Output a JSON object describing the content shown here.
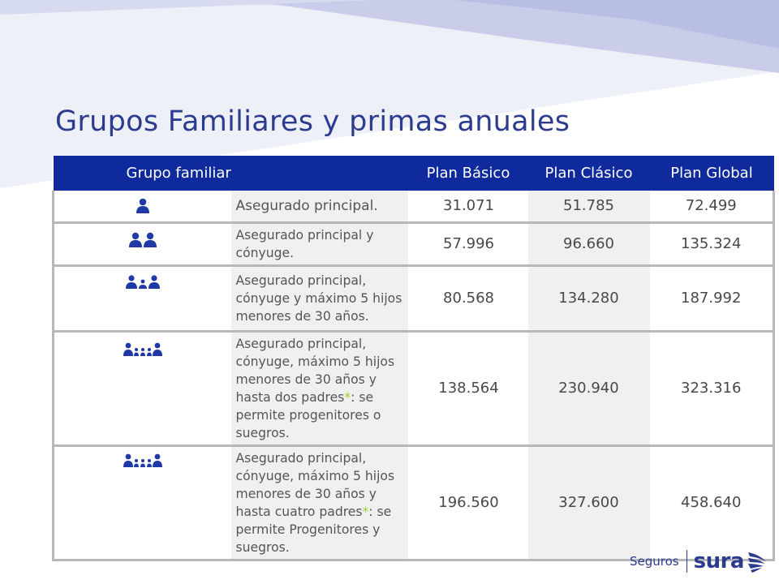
{
  "title": "Grupos Familiares y primas anuales",
  "colors": {
    "header_bg": "#0f2a9c",
    "title": "#2d3b8f",
    "asterisk": "#9bcf2a"
  },
  "table": {
    "headers": [
      "Grupo familiar",
      "Plan Básico",
      "Plan Clásico",
      "Plan Global"
    ],
    "rows": [
      {
        "icon": "one-person-icon",
        "description": "Asegurado principal.",
        "basico": "31.071",
        "clasico": "51.785",
        "global": "72.499"
      },
      {
        "icon": "two-people-icon",
        "description": "Asegurado principal y cónyuge.",
        "basico": "57.996",
        "clasico": "96.660",
        "global": "135.324"
      },
      {
        "icon": "family-icon",
        "description": "Asegurado principal, cónyuge y máximo 5 hijos menores de 30 años.",
        "basico": "80.568",
        "clasico": "134.280",
        "global": "187.992"
      },
      {
        "icon": "extended-family-icon",
        "description_before": "Asegurado principal, cónyuge, máximo 5 hijos menores de 30 años  y hasta dos padres",
        "asterisk": "*",
        "description_after": ": se permite progenitores o suegros.",
        "basico": "138.564",
        "clasico": "230.940",
        "global": "323.316"
      },
      {
        "icon": "extended-family-icon",
        "description_before": "Asegurado principal, cónyuge, máximo 5 hijos menores de 30 años y hasta cuatro padres",
        "asterisk": "*",
        "description_after": ": se permite Progenitores y suegros.",
        "basico": "196.560",
        "clasico": "327.600",
        "global": "458.640"
      }
    ]
  },
  "brand": {
    "seguros": "Seguros",
    "sura": "sura",
    "logo_icon": "sura-wings-icon"
  }
}
